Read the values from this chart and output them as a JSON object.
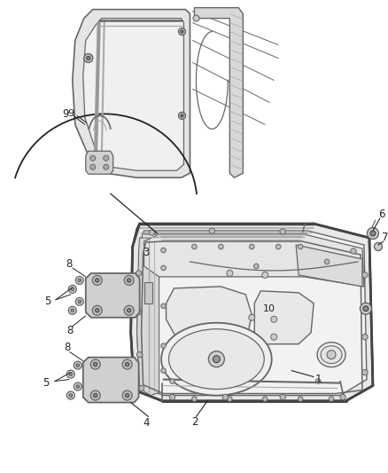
{
  "background_color": "#ffffff",
  "figsize": [
    4.38,
    5.33
  ],
  "dpi": 100,
  "gray": "#666666",
  "dgray": "#444444",
  "lgray": "#aaaaaa",
  "black": "#222222",
  "face_light": "#eeeeee",
  "face_mid": "#dddddd",
  "face_dark": "#cccccc"
}
